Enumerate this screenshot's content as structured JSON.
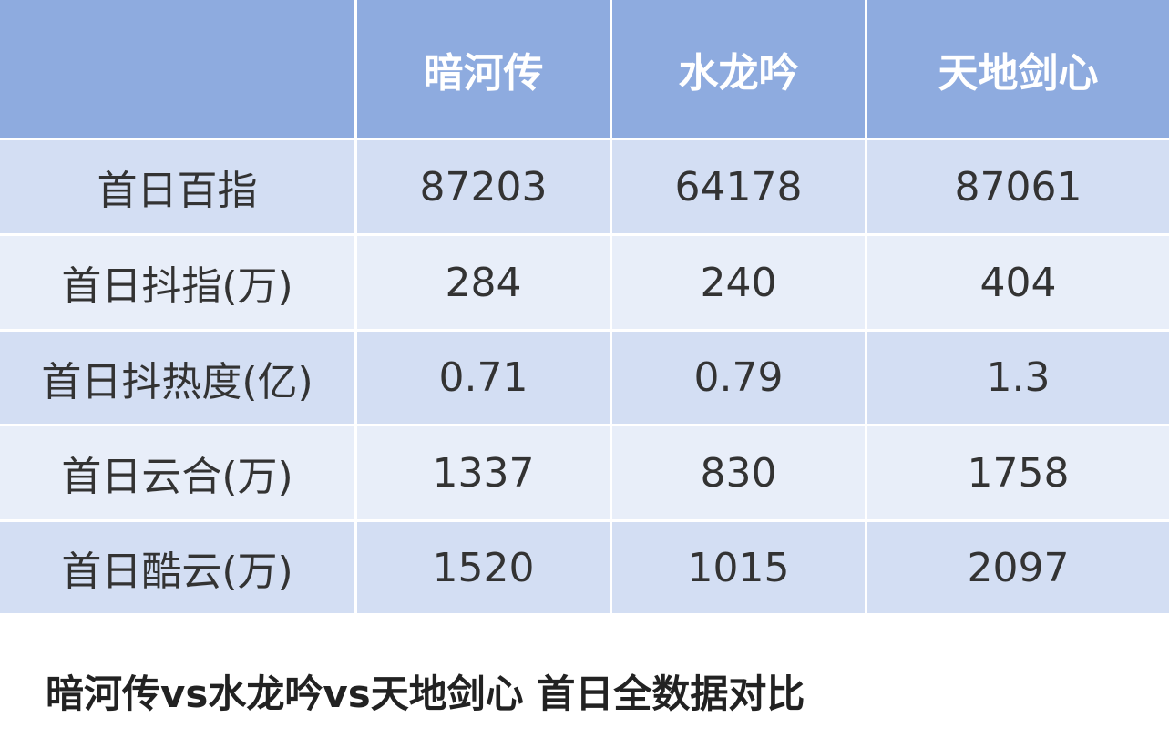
{
  "table": {
    "columns": [
      "暗河传",
      "水龙吟",
      "天地剑心"
    ],
    "rows": [
      {
        "label": "首日百指",
        "values": [
          87203,
          64178,
          87061
        ]
      },
      {
        "label": "首日抖指(万)",
        "values": [
          284,
          240,
          404
        ]
      },
      {
        "label": "首日抖热度(亿)",
        "values": [
          0.71,
          0.79,
          1.3
        ]
      },
      {
        "label": "首日云合(万)",
        "values": [
          1337,
          830,
          1758
        ]
      },
      {
        "label": "首日酷云(万)",
        "values": [
          1520,
          1015,
          2097
        ]
      }
    ]
  },
  "caption": "暗河传vs水龙吟vs天地剑心 首日全数据对比"
}
